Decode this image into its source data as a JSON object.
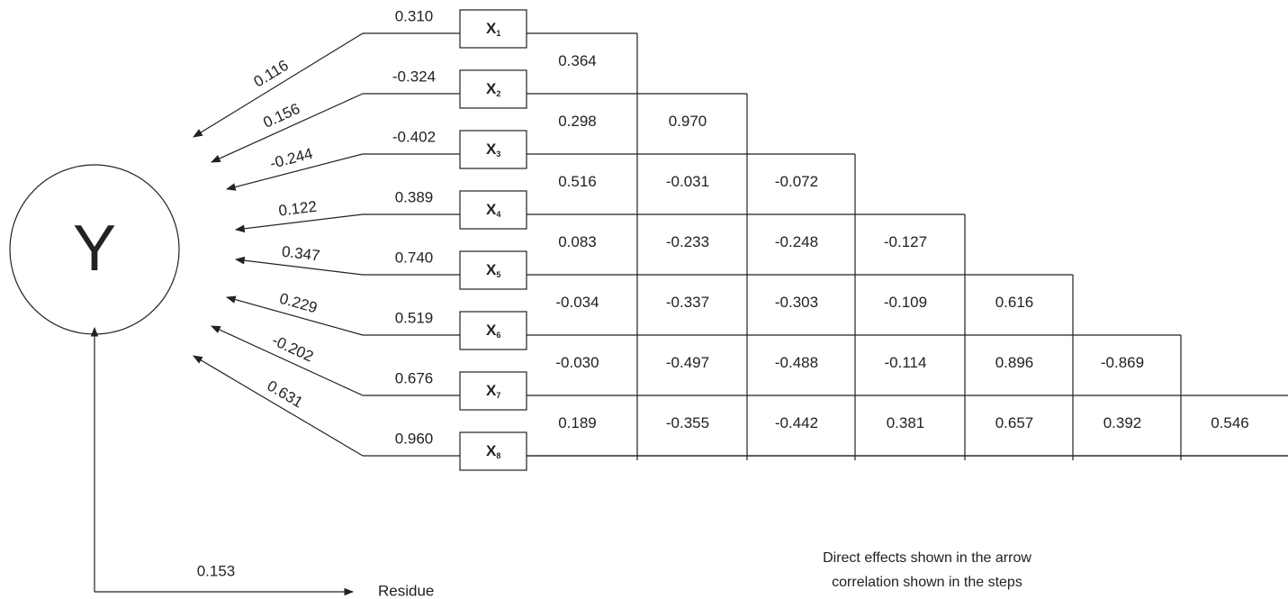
{
  "diagram": {
    "outcome": "Y",
    "residual": {
      "label": "Residue",
      "value": "0.153"
    },
    "predictors": [
      {
        "symbol": "X",
        "index": "1",
        "correlation": "0.310",
        "direct_effect": "0.116"
      },
      {
        "symbol": "X",
        "index": "2",
        "correlation": "-0.324",
        "direct_effect": "0.156"
      },
      {
        "symbol": "X",
        "index": "3",
        "correlation": "-0.402",
        "direct_effect": "-0.244"
      },
      {
        "symbol": "X",
        "index": "4",
        "correlation": "0.389",
        "direct_effect": "0.122"
      },
      {
        "symbol": "X",
        "index": "5",
        "correlation": "0.740",
        "direct_effect": "0.347"
      },
      {
        "symbol": "X",
        "index": "6",
        "correlation": "0.519",
        "direct_effect": "0.229"
      },
      {
        "symbol": "X",
        "index": "7",
        "correlation": "0.676",
        "direct_effect": "-0.202"
      },
      {
        "symbol": "X",
        "index": "8",
        "correlation": "0.960",
        "direct_effect": "0.631"
      }
    ],
    "intercorrelations": [
      [
        "0.364"
      ],
      [
        "0.298",
        "0.970"
      ],
      [
        "0.516",
        "-0.031",
        "-0.072"
      ],
      [
        "0.083",
        "-0.233",
        "-0.248",
        "-0.127"
      ],
      [
        "-0.034",
        "-0.337",
        "-0.303",
        "-0.109",
        "0.616"
      ],
      [
        "-0.030",
        "-0.497",
        "-0.488",
        "-0.114",
        "0.896",
        "-0.869"
      ],
      [
        "0.189",
        "-0.355",
        "-0.442",
        "0.381",
        "0.657",
        "0.392",
        "0.546"
      ]
    ],
    "caption": [
      "Direct effects shown in the arrow",
      "correlation shown in the steps"
    ]
  }
}
